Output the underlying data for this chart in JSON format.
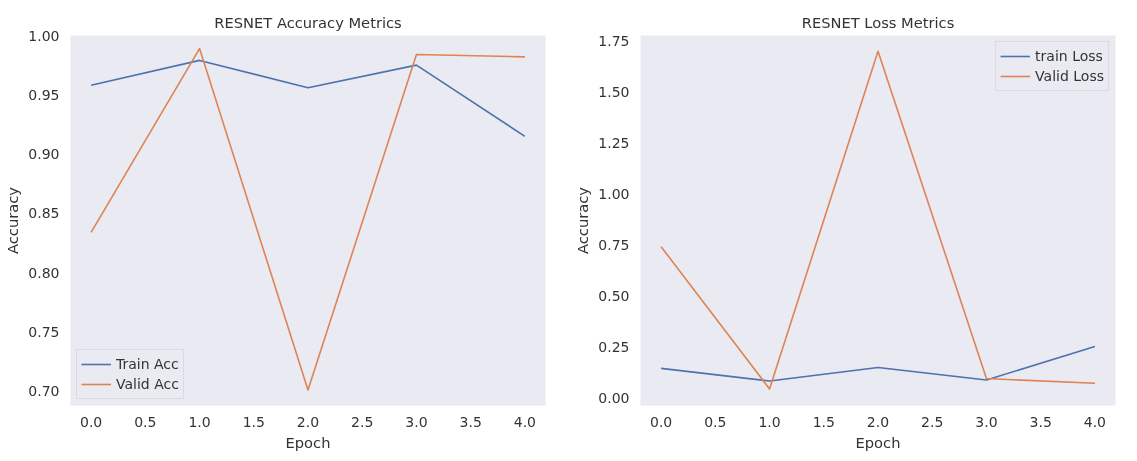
{
  "chart_data": [
    {
      "type": "line",
      "title": "RESNET Accuracy Metrics",
      "xlabel": "Epoch",
      "ylabel": "Accuracy",
      "x": [
        0,
        1,
        2,
        3,
        4
      ],
      "series": [
        {
          "name": "Train Acc",
          "color": "#4c72b0",
          "values": [
            0.958,
            0.979,
            0.956,
            0.975,
            0.915
          ]
        },
        {
          "name": "Valid Acc",
          "color": "#dd8452",
          "values": [
            0.834,
            0.989,
            0.701,
            0.984,
            0.982
          ]
        }
      ],
      "xlim": [
        -0.19,
        4.19
      ],
      "xticks": [
        {
          "value": 0,
          "label": "0.0"
        },
        0.5,
        {
          "value": 1,
          "label": "1.0"
        },
        1.5,
        {
          "value": 2,
          "label": "2.0"
        },
        2.5,
        {
          "value": 3,
          "label": "3.0"
        },
        3.5,
        {
          "value": 4,
          "label": "4.0"
        }
      ],
      "ylim": [
        0.688,
        1.0
      ],
      "yticks": [
        {
          "value": 0.7,
          "label": "0.70"
        },
        0.75,
        {
          "value": 0.8,
          "label": "0.80"
        },
        0.85,
        {
          "value": 0.9,
          "label": "0.90"
        },
        0.95,
        {
          "value": 1.0,
          "label": "1.00"
        }
      ],
      "grid": false,
      "legend": "bottom left"
    },
    {
      "type": "line",
      "title": "RESNET Loss Metrics",
      "xlabel": "Epoch",
      "ylabel": "Accuracy",
      "x": [
        0,
        1,
        2,
        3,
        4
      ],
      "series": [
        {
          "name": "train Loss",
          "color": "#4c72b0",
          "values": [
            0.146,
            0.084,
            0.15,
            0.089,
            0.253
          ]
        },
        {
          "name": "Valid Loss",
          "color": "#dd8452",
          "values": [
            0.742,
            0.045,
            1.7,
            0.096,
            0.073
          ]
        }
      ],
      "xlim": [
        -0.19,
        4.19
      ],
      "xticks": [
        {
          "value": 0,
          "label": "0.0"
        },
        0.5,
        {
          "value": 1,
          "label": "1.0"
        },
        1.5,
        {
          "value": 2,
          "label": "2.0"
        },
        2.5,
        {
          "value": 3,
          "label": "3.0"
        },
        3.5,
        {
          "value": 4,
          "label": "4.0"
        }
      ],
      "ylim": [
        -0.036,
        1.777
      ],
      "yticks": [
        {
          "value": 0,
          "label": "0.00"
        },
        0.25,
        {
          "value": 0.5,
          "label": "0.50"
        },
        0.75,
        {
          "value": 1.0,
          "label": "1.00"
        },
        1.25,
        {
          "value": 1.5,
          "label": "1.50"
        },
        1.75
      ],
      "grid": false,
      "legend": "top right"
    }
  ]
}
